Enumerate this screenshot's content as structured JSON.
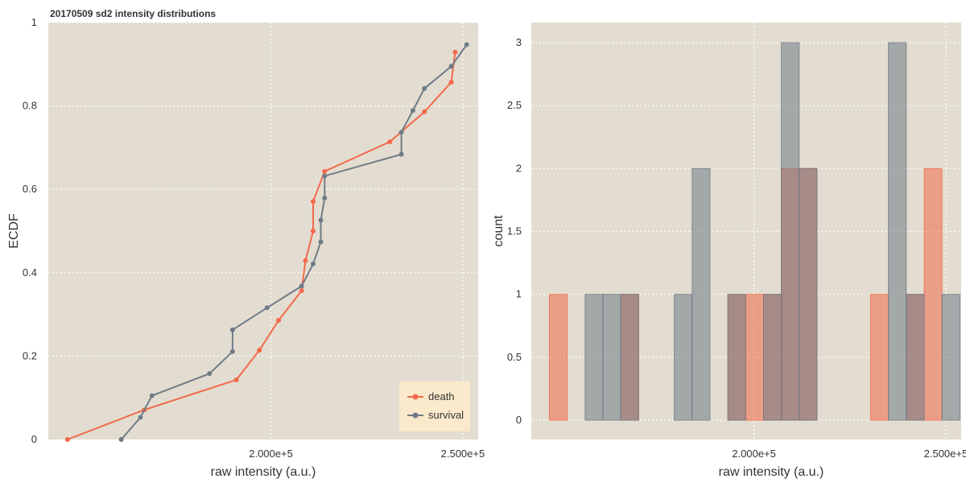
{
  "title": "20170509 sd2 intensity distributions",
  "colors": {
    "death": "#f3694a",
    "survival": "#6f7b86",
    "panel_bg": "#e3ddd1",
    "legend_bg": "#fbe9cb"
  },
  "chart_data": [
    {
      "type": "line",
      "title": "20170509 sd2 intensity distributions",
      "xlabel": "raw intensity (a.u.)",
      "ylabel": "ECDF",
      "xlim": [
        142000,
        254000
      ],
      "ylim": [
        0,
        1
      ],
      "x_ticks": [
        200000,
        250000
      ],
      "x_tick_labels": [
        "2.000e+5",
        "2.500e+5"
      ],
      "y_ticks": [
        0,
        0.2,
        0.4,
        0.6,
        0.8,
        1
      ],
      "y_tick_labels": [
        "0",
        "0.2",
        "0.4",
        "0.6",
        "0.8",
        "1"
      ],
      "grid": true,
      "legend": {
        "position": "bottom-right",
        "entries": [
          "death",
          "survival"
        ]
      },
      "series": [
        {
          "name": "death",
          "color": "#f3694a",
          "points": [
            [
              147000,
              0.0
            ],
            [
              167000,
              0.071
            ],
            [
              191000,
              0.143
            ],
            [
              197000,
              0.214
            ],
            [
              202000,
              0.286
            ],
            [
              208000,
              0.357
            ],
            [
              209000,
              0.429
            ],
            [
              211000,
              0.5
            ],
            [
              211000,
              0.571
            ],
            [
              214000,
              0.643
            ],
            [
              231000,
              0.714
            ],
            [
              240000,
              0.786
            ],
            [
              247000,
              0.857
            ],
            [
              248000,
              0.929
            ]
          ]
        },
        {
          "name": "survival",
          "color": "#6f7b86",
          "points": [
            [
              161000,
              0.0
            ],
            [
              166000,
              0.053
            ],
            [
              169000,
              0.105
            ],
            [
              184000,
              0.158
            ],
            [
              190000,
              0.211
            ],
            [
              190000,
              0.263
            ],
            [
              199000,
              0.316
            ],
            [
              208000,
              0.368
            ],
            [
              211000,
              0.421
            ],
            [
              213000,
              0.474
            ],
            [
              213000,
              0.526
            ],
            [
              214000,
              0.579
            ],
            [
              214000,
              0.632
            ],
            [
              234000,
              0.684
            ],
            [
              234000,
              0.737
            ],
            [
              237000,
              0.789
            ],
            [
              240000,
              0.842
            ],
            [
              247000,
              0.895
            ],
            [
              251000,
              0.947
            ]
          ]
        }
      ]
    },
    {
      "type": "bar",
      "xlabel": "raw intensity (a.u.)",
      "ylabel": "count",
      "xlim": [
        142000,
        254000
      ],
      "ylim": [
        0,
        3.2
      ],
      "bin_width": 4650,
      "x_ticks": [
        200000,
        250000
      ],
      "x_tick_labels": [
        "2.000e+5",
        "2.500e+5"
      ],
      "y_ticks": [
        0,
        0.5,
        1,
        1.5,
        2,
        2.5,
        3
      ],
      "y_tick_labels": [
        "0",
        "0.5",
        "1",
        "1.5",
        "2",
        "2.5",
        "3"
      ],
      "grid": true,
      "series": [
        {
          "name": "death",
          "color": "#f3694a",
          "bin_starts": [
            146700,
            151350,
            156000,
            160650,
            165300,
            169950,
            174600,
            179250,
            183900,
            188550,
            193200,
            197850,
            202500,
            207150,
            211800,
            216450,
            221100,
            225750,
            230400,
            235050,
            239700,
            244350,
            249000
          ],
          "counts": [
            1,
            0,
            0,
            0,
            1,
            0,
            0,
            0,
            0,
            0,
            1,
            1,
            1,
            2,
            2,
            0,
            0,
            0,
            1,
            0,
            1,
            2,
            0
          ]
        },
        {
          "name": "survival",
          "color": "#6f7b86",
          "bin_starts": [
            146700,
            151350,
            156000,
            160650,
            165300,
            169950,
            174600,
            179250,
            183900,
            188550,
            193200,
            197850,
            202500,
            207150,
            211800,
            216450,
            221100,
            225750,
            230400,
            235050,
            239700,
            244350,
            249000
          ],
          "counts": [
            0,
            0,
            1,
            1,
            1,
            0,
            0,
            1,
            2,
            0,
            1,
            0,
            1,
            3,
            2,
            0,
            0,
            0,
            0,
            3,
            1,
            0,
            1
          ]
        }
      ]
    }
  ]
}
